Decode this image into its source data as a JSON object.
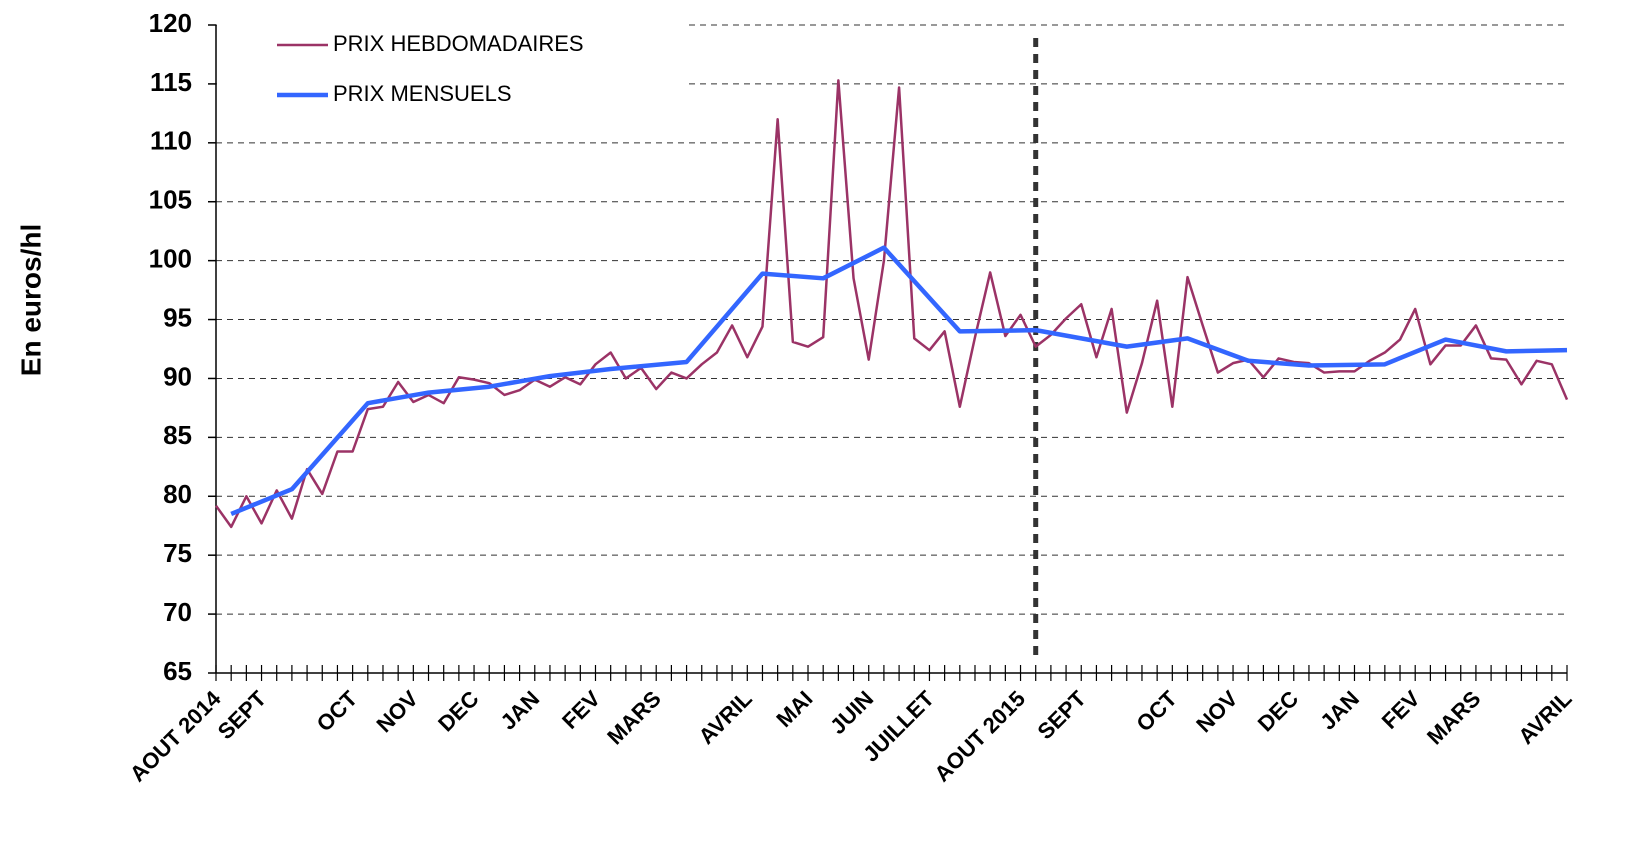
{
  "chart_data": {
    "type": "line",
    "ylabel": "En euros/hl",
    "xlim": [
      0,
      89
    ],
    "ylim": [
      65,
      120
    ],
    "yticks": [
      65,
      70,
      75,
      80,
      85,
      90,
      95,
      100,
      105,
      110,
      115,
      120
    ],
    "xticks": [
      {
        "value": 0,
        "label": "AOUT 2014"
      },
      {
        "value": 3,
        "label": "SEPT"
      },
      {
        "value": 9,
        "label": "OCT"
      },
      {
        "value": 13,
        "label": "NOV"
      },
      {
        "value": 17,
        "label": "DEC"
      },
      {
        "value": 21,
        "label": "JAN"
      },
      {
        "value": 25,
        "label": "FEV"
      },
      {
        "value": 29,
        "label": "MARS"
      },
      {
        "value": 35,
        "label": "AVRIL"
      },
      {
        "value": 39,
        "label": "MAI"
      },
      {
        "value": 43,
        "label": "JUIN"
      },
      {
        "value": 47,
        "label": "JUILLET"
      },
      {
        "value": 53,
        "label": "AOUT 2015"
      },
      {
        "value": 57,
        "label": "SEPT"
      },
      {
        "value": 63,
        "label": "OCT"
      },
      {
        "value": 67,
        "label": "NOV"
      },
      {
        "value": 71,
        "label": "DEC"
      },
      {
        "value": 75,
        "label": "JAN"
      },
      {
        "value": 79,
        "label": "FEV"
      },
      {
        "value": 83,
        "label": "MARS"
      },
      {
        "value": 89,
        "label": "AVRIL"
      }
    ],
    "grid": true,
    "legend": "top-left",
    "vline": 54,
    "series": [
      {
        "name": "PRIX HEBDOMADAIRES",
        "color": "#9b3366",
        "x": [
          0,
          1,
          2,
          3,
          4,
          5,
          6,
          7,
          8,
          9,
          10,
          11,
          12,
          13,
          14,
          15,
          16,
          17,
          18,
          19,
          20,
          21,
          22,
          23,
          24,
          25,
          26,
          27,
          28,
          29,
          30,
          31,
          32,
          33,
          34,
          35,
          36,
          37,
          38,
          39,
          40,
          41,
          42,
          43,
          44,
          45,
          46,
          47,
          48,
          49,
          50,
          51,
          52,
          53,
          54,
          55,
          56,
          57,
          58,
          59,
          60,
          61,
          62,
          63,
          64,
          65,
          66,
          67,
          68,
          69,
          70,
          71,
          72,
          73,
          74,
          75,
          76,
          77,
          78,
          79,
          80,
          81,
          82,
          83,
          84,
          85,
          86,
          87,
          88,
          89
        ],
        "values": [
          79.2,
          77.4,
          80.0,
          77.7,
          80.5,
          78.1,
          82.3,
          80.2,
          83.8,
          83.8,
          87.4,
          87.6,
          89.7,
          88.0,
          88.6,
          87.9,
          90.1,
          89.9,
          89.6,
          88.6,
          89.0,
          89.9,
          89.3,
          90.1,
          89.5,
          91.2,
          92.2,
          90.0,
          90.9,
          89.1,
          90.5,
          90.0,
          91.2,
          92.2,
          94.5,
          91.8,
          94.4,
          112.0,
          93.1,
          92.7,
          93.5,
          115.3,
          98.5,
          91.6,
          100.0,
          114.7,
          93.4,
          92.4,
          94.0,
          87.6,
          93.5,
          99.0,
          93.6,
          95.4,
          92.7,
          93.7,
          95.1,
          96.3,
          91.8,
          95.9,
          87.1,
          91.3,
          96.6,
          87.6,
          98.6,
          94.5,
          90.5,
          91.3,
          91.6,
          90.1,
          91.7,
          91.4,
          91.3,
          90.5,
          90.6,
          90.6,
          91.5,
          92.2,
          93.3,
          95.9,
          91.2,
          92.8,
          92.8,
          94.5,
          91.7,
          91.6,
          89.5,
          91.5,
          91.2,
          88.2
        ]
      },
      {
        "name": "PRIX MENSUELS",
        "color": "#3366ff",
        "x": [
          1,
          5,
          10,
          14,
          18,
          22,
          26,
          31,
          36,
          40,
          44,
          49,
          54,
          60,
          64,
          68,
          72,
          77,
          81,
          85,
          89
        ],
        "values": [
          78.5,
          80.6,
          87.9,
          88.8,
          89.3,
          90.2,
          90.8,
          91.4,
          98.9,
          98.5,
          101.1,
          94.0,
          94.1,
          92.7,
          93.4,
          91.5,
          91.1,
          91.2,
          93.3,
          92.3,
          92.4
        ]
      }
    ]
  }
}
